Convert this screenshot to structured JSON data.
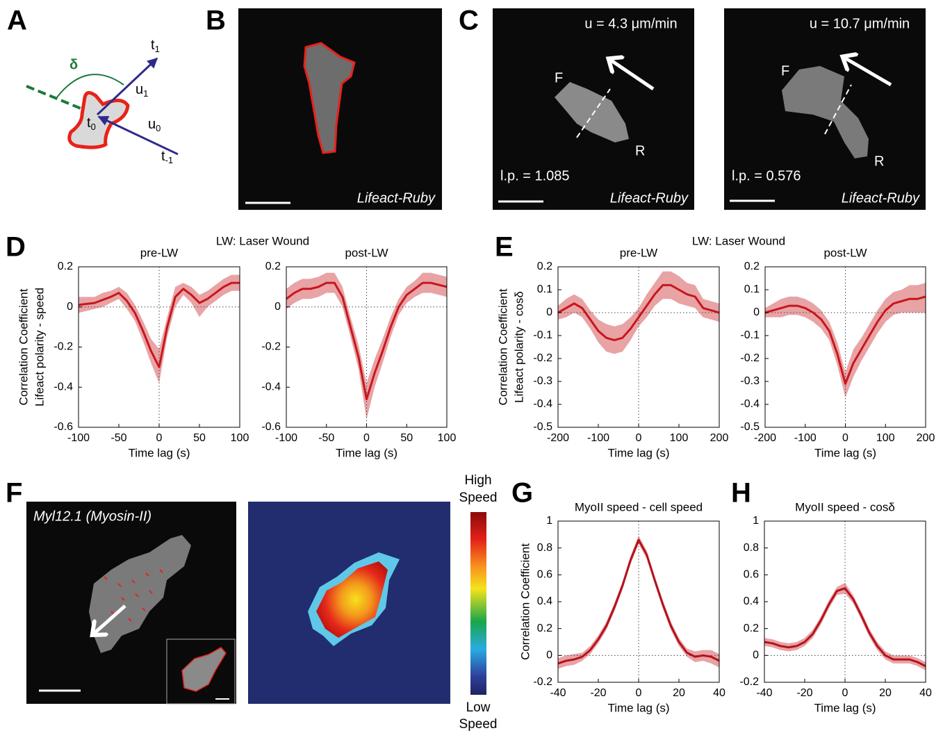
{
  "panel_labels": [
    "A",
    "B",
    "C",
    "D",
    "E",
    "F",
    "G",
    "H"
  ],
  "group_titles": [
    "LW: Laser Wound",
    "LW: Laser Wound"
  ],
  "diagram_a": {
    "delta": "δ",
    "t1": "t",
    "t1_sub": "1",
    "u1": "u",
    "u1_sub": "1",
    "t0": "t",
    "t0_sub": "0",
    "u0": "u",
    "u0_sub": "0",
    "tm1": "t",
    "tm1_sub": "-1"
  },
  "panel_b": {
    "caption": "Lifeact-Ruby"
  },
  "panel_c": [
    {
      "speed": "u = 4.3 μm/min",
      "front": "F",
      "rear": "R",
      "lp": "l.p. = 1.085",
      "caption": "Lifeact-Ruby"
    },
    {
      "speed": "u = 10.7 μm/min",
      "front": "F",
      "rear": "R",
      "lp": "l.p. = 0.576",
      "caption": "Lifeact-Ruby"
    }
  ],
  "panel_f": {
    "caption": "Myl12.1 (Myosin-II)",
    "colorbar_high": [
      "High",
      "Speed"
    ],
    "colorbar_low": [
      "Low",
      "Speed"
    ]
  },
  "chart_data": [
    {
      "type": "line",
      "title": "pre-LW",
      "xlabel": "Time lag (s)",
      "ylabel": [
        "Correlation Coefficient",
        "Lifeact polarity - speed"
      ],
      "x": [
        -100,
        -90,
        -80,
        -70,
        -60,
        -50,
        -40,
        -30,
        -20,
        -10,
        0,
        10,
        20,
        30,
        40,
        50,
        60,
        70,
        80,
        90,
        100
      ],
      "values": [
        0.01,
        0.015,
        0.02,
        0.035,
        0.05,
        0.07,
        0.03,
        -0.03,
        -0.12,
        -0.22,
        -0.3,
        -0.1,
        0.05,
        0.09,
        0.06,
        0.02,
        0.04,
        0.07,
        0.1,
        0.12,
        0.12
      ],
      "lower": [
        -0.03,
        -0.02,
        -0.01,
        0.0,
        0.02,
        0.04,
        -0.01,
        -0.07,
        -0.17,
        -0.28,
        -0.38,
        -0.15,
        0.0,
        0.06,
        0.02,
        -0.05,
        0.0,
        0.03,
        0.06,
        0.08,
        0.08
      ],
      "upper": [
        0.05,
        0.05,
        0.05,
        0.07,
        0.08,
        0.1,
        0.07,
        0.01,
        -0.07,
        -0.16,
        -0.21,
        -0.05,
        0.1,
        0.12,
        0.1,
        0.06,
        0.08,
        0.11,
        0.14,
        0.16,
        0.16
      ],
      "color": "#c8161d",
      "band_color": "#e8a3a5",
      "xlim": [
        -100,
        100
      ],
      "ylim": [
        -0.6,
        0.2
      ],
      "xticks": [
        -100,
        -50,
        0,
        50,
        100
      ],
      "yticks": [
        0.2,
        0,
        -0.2,
        -0.4,
        -0.6
      ],
      "zero_lines": true
    },
    {
      "type": "line",
      "title": "post-LW",
      "xlabel": "Time lag (s)",
      "x": [
        -100,
        -90,
        -80,
        -70,
        -60,
        -50,
        -40,
        -30,
        -20,
        -10,
        0,
        10,
        20,
        30,
        40,
        50,
        60,
        70,
        80,
        90,
        100
      ],
      "values": [
        0.04,
        0.07,
        0.09,
        0.09,
        0.1,
        0.12,
        0.12,
        0.05,
        -0.1,
        -0.25,
        -0.46,
        -0.33,
        -0.22,
        -0.1,
        0.0,
        0.06,
        0.09,
        0.12,
        0.12,
        0.11,
        0.1
      ],
      "lower": [
        -0.01,
        0.02,
        0.04,
        0.04,
        0.05,
        0.07,
        0.07,
        0.0,
        -0.15,
        -0.31,
        -0.56,
        -0.4,
        -0.28,
        -0.15,
        -0.04,
        0.02,
        0.05,
        0.07,
        0.07,
        0.06,
        0.05
      ],
      "upper": [
        0.09,
        0.12,
        0.14,
        0.14,
        0.15,
        0.17,
        0.17,
        0.1,
        -0.05,
        -0.19,
        -0.38,
        -0.26,
        -0.16,
        -0.05,
        0.04,
        0.1,
        0.13,
        0.17,
        0.17,
        0.16,
        0.15
      ],
      "color": "#c8161d",
      "band_color": "#e8a3a5",
      "xlim": [
        -100,
        100
      ],
      "ylim": [
        -0.6,
        0.2
      ],
      "xticks": [
        -100,
        -50,
        0,
        50,
        100
      ],
      "yticks": [
        0.2,
        0,
        -0.2,
        -0.4,
        -0.6
      ],
      "zero_lines": true
    },
    {
      "type": "line",
      "title": "pre-LW",
      "xlabel": "Time lag (s)",
      "ylabel": [
        "Correlation Coefficient",
        "Lifeact polarity - cosδ"
      ],
      "x": [
        -200,
        -180,
        -160,
        -140,
        -120,
        -100,
        -80,
        -60,
        -40,
        -20,
        0,
        20,
        40,
        60,
        80,
        100,
        120,
        140,
        160,
        180,
        200
      ],
      "values": [
        0.0,
        0.02,
        0.04,
        0.02,
        -0.03,
        -0.08,
        -0.11,
        -0.12,
        -0.11,
        -0.07,
        -0.02,
        0.03,
        0.08,
        0.12,
        0.12,
        0.1,
        0.08,
        0.07,
        0.02,
        0.01,
        0.0
      ],
      "lower": [
        -0.03,
        -0.02,
        0.0,
        -0.02,
        -0.07,
        -0.13,
        -0.17,
        -0.18,
        -0.17,
        -0.12,
        -0.06,
        -0.02,
        0.03,
        0.06,
        0.06,
        0.04,
        0.03,
        0.02,
        -0.02,
        -0.03,
        -0.04
      ],
      "upper": [
        0.03,
        0.06,
        0.08,
        0.06,
        0.01,
        -0.03,
        -0.05,
        -0.06,
        -0.05,
        -0.02,
        0.02,
        0.08,
        0.13,
        0.18,
        0.18,
        0.16,
        0.13,
        0.12,
        0.06,
        0.05,
        0.04
      ],
      "color": "#c8161d",
      "band_color": "#e8a3a5",
      "xlim": [
        -200,
        200
      ],
      "ylim": [
        -0.5,
        0.2
      ],
      "xticks": [
        -200,
        -100,
        0,
        100,
        200
      ],
      "yticks": [
        0.2,
        0.1,
        0,
        -0.1,
        -0.2,
        -0.3,
        -0.4,
        -0.5
      ],
      "zero_lines": true
    },
    {
      "type": "line",
      "title": "post-LW",
      "xlabel": "Time lag (s)",
      "x": [
        -200,
        -180,
        -160,
        -140,
        -120,
        -100,
        -80,
        -60,
        -40,
        -20,
        0,
        20,
        40,
        60,
        80,
        100,
        120,
        140,
        160,
        180,
        200
      ],
      "values": [
        0.0,
        0.01,
        0.02,
        0.03,
        0.03,
        0.02,
        0.0,
        -0.03,
        -0.08,
        -0.18,
        -0.31,
        -0.22,
        -0.16,
        -0.1,
        -0.04,
        0.01,
        0.04,
        0.05,
        0.06,
        0.06,
        0.07
      ],
      "lower": [
        -0.02,
        -0.02,
        -0.02,
        -0.01,
        -0.01,
        -0.02,
        -0.04,
        -0.07,
        -0.12,
        -0.23,
        -0.37,
        -0.28,
        -0.21,
        -0.15,
        -0.09,
        -0.04,
        -0.01,
        0.0,
        0.0,
        0.0,
        0.0
      ],
      "upper": [
        0.02,
        0.04,
        0.06,
        0.07,
        0.07,
        0.06,
        0.04,
        0.01,
        -0.04,
        -0.13,
        -0.26,
        -0.16,
        -0.11,
        -0.05,
        0.01,
        0.06,
        0.09,
        0.1,
        0.12,
        0.12,
        0.13
      ],
      "color": "#c8161d",
      "band_color": "#e8a3a5",
      "xlim": [
        -200,
        200
      ],
      "ylim": [
        -0.5,
        0.2
      ],
      "xticks": [
        -200,
        -100,
        0,
        100,
        200
      ],
      "yticks": [
        0.2,
        0.1,
        0,
        -0.1,
        -0.2,
        -0.3,
        -0.4,
        -0.5
      ],
      "zero_lines": true
    },
    {
      "type": "line",
      "title": "MyoII speed - cell speed",
      "xlabel": "Time lag (s)",
      "ylabel": [
        "Correlation Coefficient"
      ],
      "x": [
        -40,
        -36,
        -32,
        -28,
        -24,
        -20,
        -16,
        -12,
        -8,
        -4,
        0,
        4,
        8,
        12,
        16,
        20,
        24,
        28,
        32,
        36,
        40
      ],
      "values": [
        -0.06,
        -0.04,
        -0.03,
        -0.01,
        0.04,
        0.12,
        0.22,
        0.36,
        0.52,
        0.71,
        0.86,
        0.75,
        0.56,
        0.38,
        0.22,
        0.1,
        0.02,
        -0.01,
        0.0,
        -0.01,
        -0.04
      ],
      "lower": [
        -0.1,
        -0.08,
        -0.07,
        -0.04,
        0.01,
        0.09,
        0.19,
        0.33,
        0.49,
        0.68,
        0.83,
        0.72,
        0.53,
        0.35,
        0.19,
        0.07,
        -0.01,
        -0.05,
        -0.04,
        -0.06,
        -0.09
      ],
      "upper": [
        -0.02,
        0.0,
        0.01,
        0.02,
        0.07,
        0.15,
        0.25,
        0.39,
        0.55,
        0.74,
        0.89,
        0.78,
        0.59,
        0.41,
        0.25,
        0.13,
        0.05,
        0.03,
        0.04,
        0.04,
        0.01
      ],
      "color": "#b5121b",
      "band_color": "#e8a3a5",
      "xlim": [
        -40,
        40
      ],
      "ylim": [
        -0.2,
        1
      ],
      "xticks": [
        -40,
        -20,
        0,
        20,
        40
      ],
      "yticks": [
        1,
        0.8,
        0.6,
        0.4,
        0.2,
        0,
        -0.2
      ],
      "zero_lines": true
    },
    {
      "type": "line",
      "title": "MyoII speed - cosδ",
      "xlabel": "Time lag (s)",
      "x": [
        -40,
        -36,
        -32,
        -28,
        -24,
        -20,
        -16,
        -12,
        -8,
        -4,
        0,
        4,
        8,
        12,
        16,
        20,
        24,
        28,
        32,
        36,
        40
      ],
      "values": [
        0.1,
        0.09,
        0.07,
        0.06,
        0.07,
        0.1,
        0.16,
        0.26,
        0.38,
        0.48,
        0.5,
        0.42,
        0.3,
        0.17,
        0.07,
        0.0,
        -0.03,
        -0.03,
        -0.03,
        -0.05,
        -0.08
      ],
      "lower": [
        0.07,
        0.06,
        0.04,
        0.03,
        0.04,
        0.07,
        0.13,
        0.23,
        0.35,
        0.45,
        0.46,
        0.39,
        0.27,
        0.14,
        0.04,
        -0.03,
        -0.06,
        -0.06,
        -0.06,
        -0.08,
        -0.11
      ],
      "upper": [
        0.13,
        0.12,
        0.1,
        0.09,
        0.1,
        0.13,
        0.19,
        0.29,
        0.41,
        0.51,
        0.54,
        0.45,
        0.33,
        0.2,
        0.1,
        0.03,
        0.0,
        0.0,
        0.0,
        -0.02,
        -0.05
      ],
      "color": "#b5121b",
      "band_color": "#e8a3a5",
      "xlim": [
        -40,
        40
      ],
      "ylim": [
        -0.2,
        1
      ],
      "xticks": [
        -40,
        -20,
        0,
        20,
        40
      ],
      "yticks": [
        1,
        0.8,
        0.6,
        0.4,
        0.2,
        0,
        -0.2
      ],
      "zero_lines": true
    }
  ]
}
